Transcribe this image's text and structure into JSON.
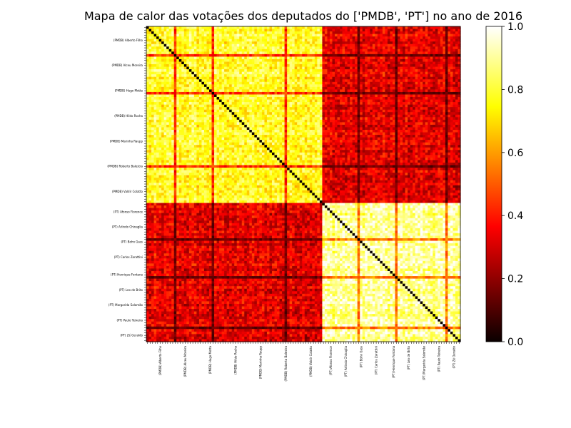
{
  "chart_data": {
    "type": "heatmap",
    "title": "Mapa de calor das votações dos deputados do ['PMDB', 'PT'] no ano de 2016",
    "xlabel": "",
    "ylabel": "",
    "colormap": "hot",
    "colorbar": {
      "range": [
        0.0,
        1.0
      ],
      "ticks": [
        0.0,
        0.2,
        0.4,
        0.6,
        0.8,
        1.0
      ],
      "tick_labels": [
        "0.0",
        "0.2",
        "0.4",
        "0.6",
        "0.8",
        "1.0"
      ]
    },
    "groups": [
      {
        "party": "PMDB",
        "count": 70
      },
      {
        "party": "PT",
        "count": 55
      }
    ],
    "block_means": {
      "within_pmdb": 0.78,
      "within_pt": 0.9,
      "between": 0.33
    },
    "diagonal_value": 0.0,
    "row_labels_visible": [
      "(PMDB) Alberto Filho",
      "(PMDB) Alceu Moreira",
      "(PMDB) Hugo Motta",
      "(PMDB) Hildo Rocha",
      "(PMDB) Marinha Raupp",
      "(PMDB) Roberto Balestra",
      "(PMDB) Valdir Colatto",
      "(PT) Afonso Florence",
      "(PT) Arlindo Chinaglia",
      "(PT) Bohn Gass",
      "(PT) Carlos Zarattini",
      "(PT) Henrique Fontana",
      "(PT) Leo de Brito",
      "(PT) Margarida Salomão",
      "(PT) Paulo Teixeira",
      "(PT) Zé Geraldo"
    ]
  }
}
